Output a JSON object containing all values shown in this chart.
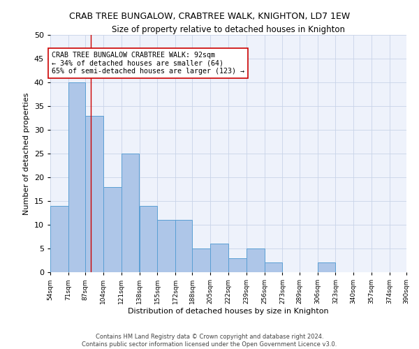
{
  "title": "CRAB TREE BUNGALOW, CRABTREE WALK, KNIGHTON, LD7 1EW",
  "subtitle": "Size of property relative to detached houses in Knighton",
  "xlabel": "Distribution of detached houses by size in Knighton",
  "ylabel": "Number of detached properties",
  "bar_edges": [
    54,
    71,
    87,
    104,
    121,
    138,
    155,
    172,
    188,
    205,
    222,
    239,
    256,
    273,
    289,
    306,
    323,
    340,
    357,
    374,
    390
  ],
  "bar_heights": [
    14,
    40,
    33,
    18,
    25,
    14,
    11,
    11,
    5,
    6,
    3,
    5,
    2,
    0,
    0,
    2,
    0,
    0,
    0,
    0
  ],
  "bar_color": "#aec6e8",
  "bar_edge_color": "#5a9fd4",
  "annotation_text": "CRAB TREE BUNGALOW CRABTREE WALK: 92sqm\n← 34% of detached houses are smaller (64)\n65% of semi-detached houses are larger (123) →",
  "vline_x": 92,
  "vline_color": "#cc0000",
  "tick_labels": [
    "54sqm",
    "71sqm",
    "87sqm",
    "104sqm",
    "121sqm",
    "138sqm",
    "155sqm",
    "172sqm",
    "188sqm",
    "205sqm",
    "222sqm",
    "239sqm",
    "256sqm",
    "273sqm",
    "289sqm",
    "306sqm",
    "323sqm",
    "340sqm",
    "357sqm",
    "374sqm",
    "390sqm"
  ],
  "ylim": [
    0,
    50
  ],
  "yticks": [
    0,
    5,
    10,
    15,
    20,
    25,
    30,
    35,
    40,
    45,
    50
  ],
  "footer": "Contains HM Land Registry data © Crown copyright and database right 2024.\nContains public sector information licensed under the Open Government Licence v3.0.",
  "bg_color": "#eef2fb",
  "grid_color": "#c8d4e8"
}
